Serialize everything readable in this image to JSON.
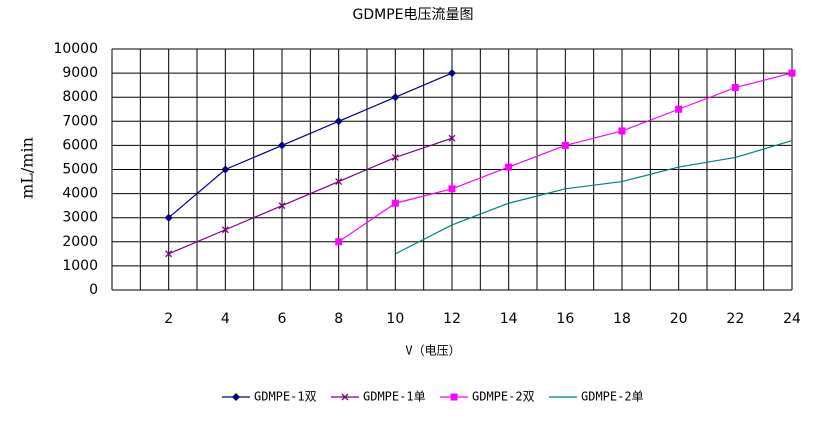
{
  "chart_data": {
    "type": "line",
    "title": "GDMPE电压流量图",
    "x_label": "V（电压）",
    "y_label": "mL/min",
    "xlim": [
      0,
      24
    ],
    "xticks": [
      2,
      4,
      6,
      8,
      10,
      12,
      14,
      16,
      18,
      20,
      22,
      24
    ],
    "x_minor_ticks": [
      1,
      3,
      5,
      7,
      9,
      11,
      13,
      15,
      17,
      19,
      21,
      23
    ],
    "ylim": [
      0,
      10000
    ],
    "yticks": [
      0,
      1000,
      2000,
      3000,
      4000,
      5000,
      6000,
      7000,
      8000,
      9000,
      10000
    ],
    "grid": true,
    "series": [
      {
        "name": "GDMPE-1双",
        "color": "#000080",
        "marker": "diamond",
        "x": [
          2,
          4,
          6,
          8,
          10,
          12
        ],
        "values": [
          3000,
          5000,
          6000,
          7000,
          8000,
          9000
        ]
      },
      {
        "name": "GDMPE-1单",
        "color": "#800080",
        "marker": "x",
        "x": [
          2,
          4,
          6,
          8,
          10,
          12
        ],
        "values": [
          1500,
          2500,
          3500,
          4500,
          5500,
          6300
        ]
      },
      {
        "name": "GDMPE-2双",
        "color": "#ff00ff",
        "marker": "square",
        "x": [
          8,
          10,
          12,
          14,
          16,
          18,
          20,
          22,
          24
        ],
        "values": [
          2000,
          3600,
          4200,
          5100,
          6000,
          6600,
          7500,
          8400,
          9000
        ]
      },
      {
        "name": "GDMPE-2单",
        "color": "#008080",
        "marker": "none",
        "x": [
          10,
          12,
          14,
          16,
          18,
          20,
          22,
          24
        ],
        "values": [
          1500,
          2700,
          3600,
          4200,
          4500,
          5100,
          5500,
          6200
        ]
      }
    ]
  }
}
